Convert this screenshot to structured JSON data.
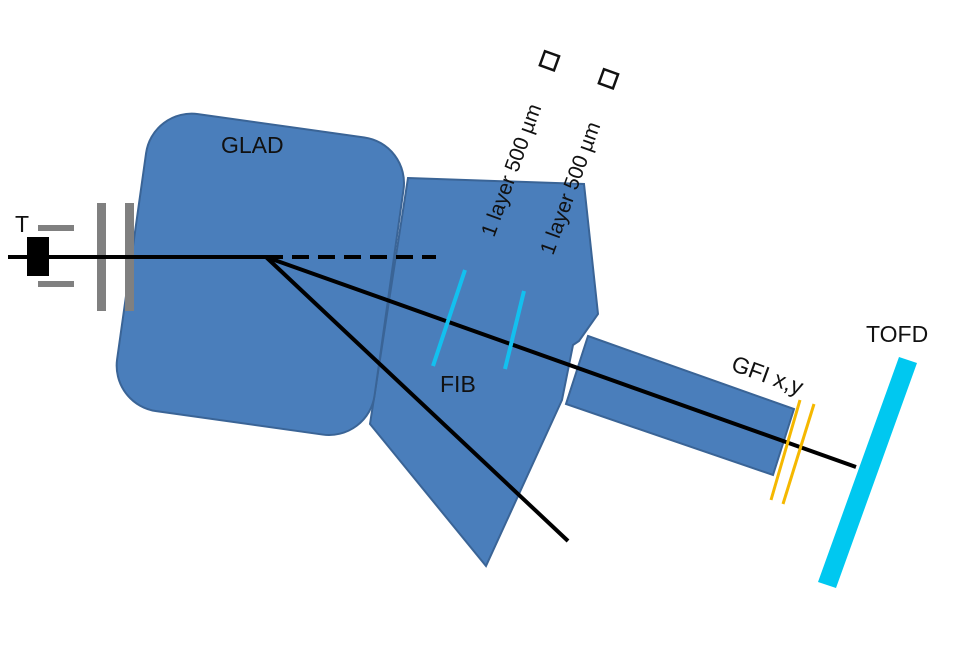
{
  "labels": {
    "target": "T",
    "magnet": "GLAD",
    "fiber_detector": "FIB",
    "fiber_layer_1": "1 layer 500 µm",
    "fiber_layer_2": "1 layer 500 µm",
    "gfi": "GFI x,y",
    "tofd": "TOFD"
  },
  "icons": {
    "fiber_square_1": "square-outline-icon",
    "fiber_square_2": "square-outline-icon"
  },
  "colors": {
    "magnet_fill": "#4a7ebb",
    "magnet_stroke": "#3a6496",
    "fiber_line": "#13c0ef",
    "tofd": "#00c8f0",
    "gfi": "#f5b800",
    "beam": "#000000",
    "target_holder": "#808080",
    "target": "#000000"
  }
}
